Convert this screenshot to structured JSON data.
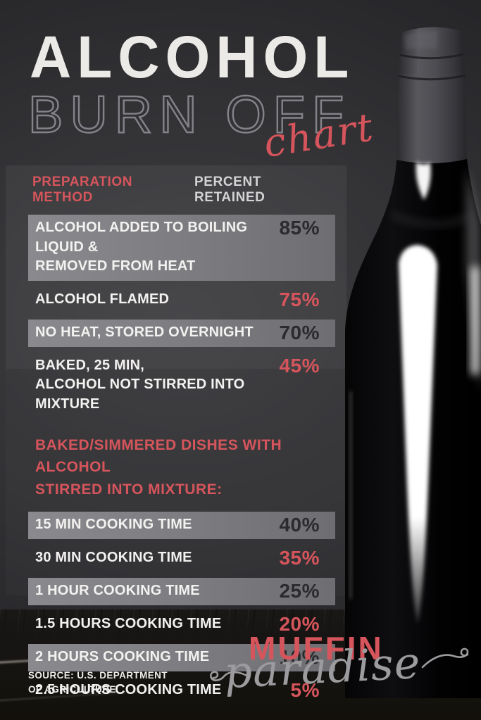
{
  "title": {
    "line1": "ALCOHOL",
    "line2": "BURN OFF",
    "script": "chart"
  },
  "table": {
    "col_method": "PREPARATION METHOD",
    "col_percent": "PERCENT RETAINED",
    "rows_top": [
      {
        "label": "ALCOHOL ADDED TO BOILING LIQUID &\nREMOVED FROM HEAT",
        "value": "85%",
        "shaded": true
      },
      {
        "label": "ALCOHOL FLAMED",
        "value": "75%",
        "shaded": false
      },
      {
        "label": "NO HEAT, STORED OVERNIGHT",
        "value": "70%",
        "shaded": true
      },
      {
        "label": "BAKED, 25 MIN,\nALCOHOL NOT STIRRED INTO MIXTURE",
        "value": "45%",
        "shaded": false
      }
    ],
    "section_header": "BAKED/SIMMERED DISHES WITH ALCOHOL\nSTIRRED INTO MIXTURE:",
    "rows_bottom": [
      {
        "label": "15 MIN COOKING TIME",
        "value": "40%",
        "shaded": true
      },
      {
        "label": "30 MIN COOKING TIME",
        "value": "35%",
        "shaded": false
      },
      {
        "label": "1 HOUR COOKING TIME",
        "value": "25%",
        "shaded": true
      },
      {
        "label": "1.5 HOURS COOKING TIME",
        "value": "20%",
        "shaded": false
      },
      {
        "label": "2 HOURS COOKING TIME",
        "value": "10%",
        "shaded": true
      },
      {
        "label": "2.5 HOURS COOKING TIME",
        "value": "5%",
        "shaded": false
      }
    ]
  },
  "source": {
    "text": "SOURCE: U.S. DEPARTMENT\nOF AGRICULTURE"
  },
  "brand": {
    "top": "MUFFIN",
    "bottom": "paradise"
  },
  "colors": {
    "accent_red": "#d6555c",
    "band_gray": "#7d7d81",
    "title_white": "#eceae6",
    "burnoff_gray": "#83838a",
    "label_white": "#f3f2f0",
    "value_dark": "#2b2b2e",
    "script_gray": "#9c9c9f"
  },
  "chart_data": {
    "type": "table",
    "title": "Alcohol Burn Off Chart",
    "columns": [
      "Preparation Method",
      "Percent Retained"
    ],
    "rows": [
      [
        "Alcohol added to boiling liquid & removed from heat",
        85
      ],
      [
        "Alcohol flamed",
        75
      ],
      [
        "No heat, stored overnight",
        70
      ],
      [
        "Baked, 25 min, alcohol not stirred into mixture",
        45
      ],
      [
        "15 min cooking time (baked/simmered, stirred into mixture)",
        40
      ],
      [
        "30 min cooking time (baked/simmered, stirred into mixture)",
        35
      ],
      [
        "1 hour cooking time (baked/simmered, stirred into mixture)",
        25
      ],
      [
        "1.5 hours cooking time (baked/simmered, stirred into mixture)",
        20
      ],
      [
        "2 hours cooking time (baked/simmered, stirred into mixture)",
        10
      ],
      [
        "2.5 hours cooking time (baked/simmered, stirred into mixture)",
        5
      ]
    ],
    "source": "U.S. Department of Agriculture"
  }
}
